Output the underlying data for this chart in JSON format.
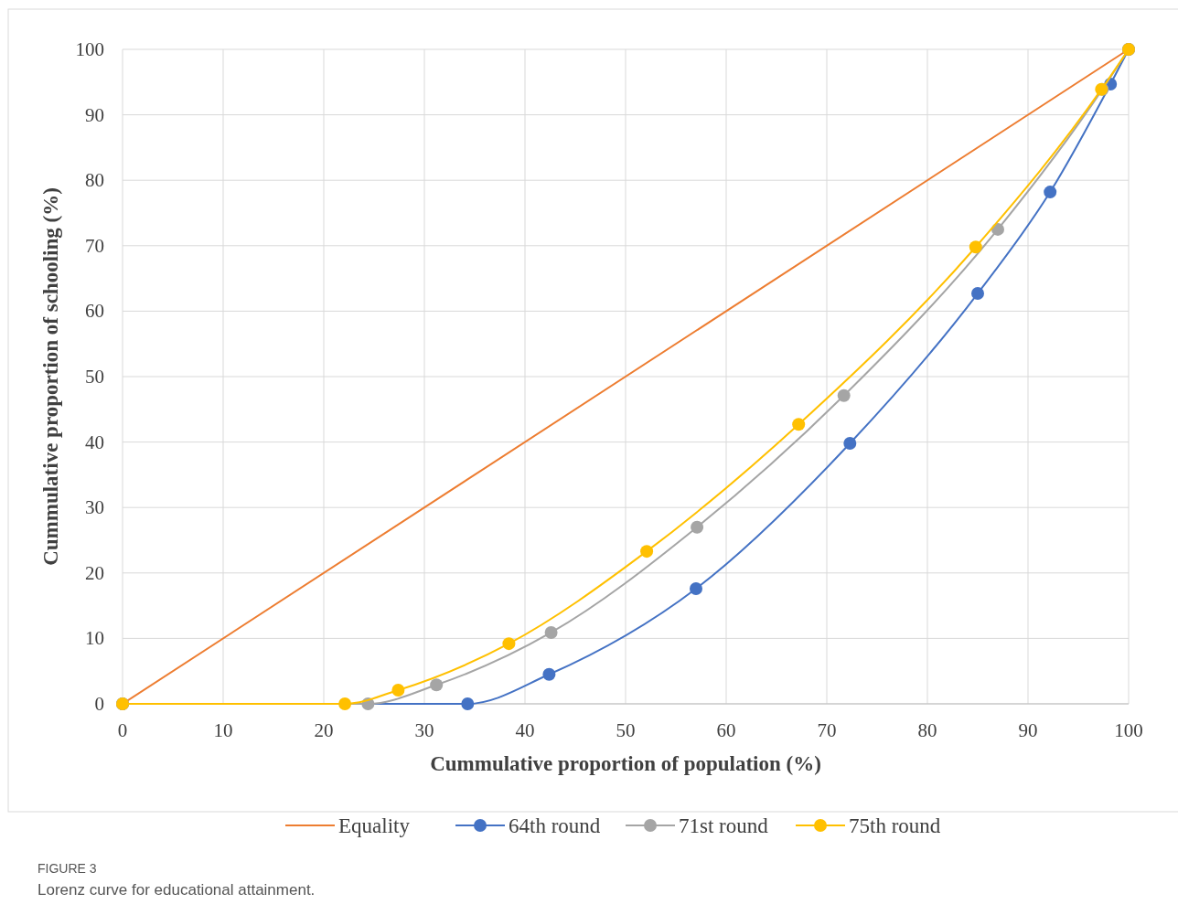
{
  "chart_data": {
    "type": "line",
    "xlabel": "Cummulative proportion of population (%)",
    "ylabel": "Cummulative proportion of schooling (%)",
    "xlim": [
      0,
      100
    ],
    "xticks": [
      0,
      10,
      20,
      30,
      40,
      50,
      60,
      70,
      80,
      90,
      100
    ],
    "ylim": [
      0,
      100
    ],
    "yticks": [
      0,
      10,
      20,
      30,
      40,
      50,
      60,
      70,
      80,
      90,
      100
    ],
    "grid": true,
    "legend": "bottom",
    "marker": "circle",
    "series": [
      {
        "name": "Equality",
        "color": "#ed7d31",
        "marker": "none",
        "x": [
          0,
          100
        ],
        "values": [
          0,
          100
        ]
      },
      {
        "name": "64th round",
        "color": "#4472c4",
        "x": [
          0,
          34.3,
          42.4,
          57.0,
          72.3,
          85.0,
          92.2,
          98.2,
          100
        ],
        "values": [
          0,
          0,
          4.5,
          17.6,
          39.8,
          62.7,
          78.2,
          94.7,
          100
        ]
      },
      {
        "name": "71st round",
        "color": "#a5a5a5",
        "x": [
          0,
          24.4,
          31.2,
          42.6,
          57.1,
          71.7,
          87.0,
          97.4,
          100
        ],
        "values": [
          0,
          0,
          2.9,
          10.9,
          27.0,
          47.1,
          72.5,
          93.9,
          100
        ]
      },
      {
        "name": "75th round",
        "color": "#ffc000",
        "x": [
          0,
          22.1,
          27.4,
          38.4,
          52.1,
          67.2,
          84.8,
          97.3,
          100
        ],
        "values": [
          0,
          0,
          2.1,
          9.2,
          23.3,
          42.7,
          69.8,
          93.9,
          100
        ]
      }
    ],
    "annotations": [
      "FIGURE 3",
      "Lorenz curve for educational attainment."
    ]
  }
}
